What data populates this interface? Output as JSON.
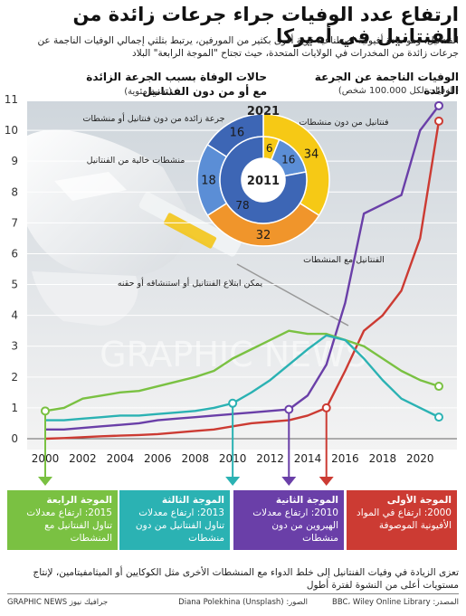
{
  "title": "ارتفاع عدد الوفيات جراء جرعات زائدة من الفنتانيل في أميركا",
  "subtitle": "الفنتانيل، وهو مادة أفيونية اصطناعية قوية أقوى بكثير من المورفين، يرتبط بثلثي إجمالي الوفيات الناجمة عن جرعات زائدة من المخدرات في الولايات المتحدة، حيث تجتاح \"الموجة الرابعة\" البلاد",
  "line_section": {
    "heading": "الوفيات الناجمة عن الجرعة الزائدة",
    "unit": "(الوفيات لكل 100.000 شخص)"
  },
  "donut_section": {
    "heading_line1": "حالات الوفاة بسبب الجرعة الزائدة",
    "heading_line2": "مع أو من دون الفنتانيل",
    "unit": "(نسبة مئوية)"
  },
  "donut_labels": {
    "stimulants_without_fentanyl": "فنتانيل من دون منشطات",
    "overdose_no_stimulants": "جرعة زائدة من دون فنتانيل أو منشطات",
    "stimulants_no_fentanyl": "منشطات خالية من الفنتانيل",
    "fentanyl_with_stimulants": "الفنتانيل مع المنشطات",
    "ingestion_note": "يمكن ابتلاع الفنتانيل أو استنشاقه أو حقنه"
  },
  "watermark": "GRAPHIC NEWS",
  "chart_data": [
    {
      "type": "line",
      "title": "",
      "x": [
        2000,
        2001,
        2002,
        2003,
        2004,
        2005,
        2006,
        2007,
        2008,
        2009,
        2010,
        2011,
        2012,
        2013,
        2014,
        2015,
        2016,
        2017,
        2018,
        2019,
        2020,
        2021
      ],
      "x_ticks": [
        2000,
        2002,
        2004,
        2006,
        2008,
        2010,
        2012,
        2014,
        2016,
        2018,
        2020
      ],
      "ylim": [
        0,
        11
      ],
      "y_ticks": [
        0,
        1,
        2,
        3,
        4,
        5,
        6,
        7,
        8,
        9,
        10,
        11
      ],
      "grid": true,
      "series": [
        {
          "key": "purple",
          "color": "#6a3fa8",
          "values": [
            0.3,
            0.3,
            0.35,
            0.4,
            0.45,
            0.5,
            0.6,
            0.65,
            0.7,
            0.75,
            0.8,
            0.85,
            0.9,
            0.95,
            1.4,
            2.4,
            4.4,
            7.3,
            7.6,
            7.9,
            10.0,
            10.8
          ]
        },
        {
          "key": "red",
          "color": "#cc3b33",
          "values": [
            0.0,
            0.02,
            0.05,
            0.08,
            0.1,
            0.12,
            0.15,
            0.2,
            0.25,
            0.3,
            0.4,
            0.5,
            0.55,
            0.6,
            0.75,
            1.0,
            2.2,
            3.5,
            4.0,
            4.8,
            6.5,
            10.3
          ]
        },
        {
          "key": "green",
          "color": "#7ac142",
          "values": [
            0.9,
            1.0,
            1.3,
            1.4,
            1.5,
            1.55,
            1.7,
            1.85,
            2.0,
            2.2,
            2.6,
            2.9,
            3.2,
            3.5,
            3.4,
            3.4,
            3.2,
            3.0,
            2.6,
            2.2,
            1.9,
            1.7
          ]
        },
        {
          "key": "teal",
          "color": "#2bb2b3",
          "values": [
            0.6,
            0.6,
            0.65,
            0.7,
            0.75,
            0.75,
            0.8,
            0.85,
            0.9,
            1.0,
            1.15,
            1.5,
            1.9,
            2.4,
            2.9,
            3.35,
            3.2,
            2.6,
            1.9,
            1.3,
            1.0,
            0.7
          ]
        }
      ]
    },
    {
      "type": "pie",
      "title": "2011",
      "slices": [
        {
          "label": "فنتانيل من دون منشطات",
          "value": 6,
          "color": "#f6c915"
        },
        {
          "label": "منشطات خالية من الفنتانيل",
          "value": 16,
          "color": "#5b8ed6"
        },
        {
          "label": "جرعة زائدة من دون فنتانيل أو منشطات",
          "value": 78,
          "color": "#3d66b5"
        }
      ]
    },
    {
      "type": "pie",
      "title": "2021",
      "slices": [
        {
          "label": "فنتانيل من دون منشطات",
          "value": 34,
          "color": "#f6c915"
        },
        {
          "label": "الفنتانيل مع المنشطات",
          "value": 32,
          "color": "#f0952b"
        },
        {
          "label": "منشطات خالية من الفنتانيل",
          "value": 18,
          "color": "#5b8ed6"
        },
        {
          "label": "جرعة زائدة من دون فنتانيل أو منشطات",
          "value": 16,
          "color": "#3d66b5"
        }
      ]
    }
  ],
  "waves": [
    {
      "key": "green",
      "color": "#7ac142",
      "title": "الموجة الرابعة",
      "text": "2015: ارتفاع معدلات تناول الفنتانيل مع المنشطات",
      "year": 2000
    },
    {
      "key": "teal",
      "color": "#2bb2b3",
      "title": "الموجة الثالثة",
      "text": "2013: ارتفاع معدلات تناول الفنتانيل من دون منشطات",
      "year": 2010
    },
    {
      "key": "purple",
      "color": "#6a3fa8",
      "title": "الموجة الثانية",
      "text": "2010: ارتفاع معدلات الهيروين من دون منشطات",
      "year": 2013
    },
    {
      "key": "red",
      "color": "#cc3b33",
      "title": "الموجة الأولى",
      "text": "2000: ارتفاع في المواد الأفيونية الموصوفة",
      "year": 2015
    }
  ],
  "footnote": "تعزى الزيادة في وفيات الفنتانيل إلى خلط الدواء مع المنشطات الأخرى مثل الكوكايين أو الميثامفيتامين، لإنتاج مستويات أعلى من النشوة لفترة أطول",
  "footer": {
    "source_label": "المصدر:",
    "source": "BBC، Wiley Online Library",
    "photo_label": "الصور:",
    "photo": "Diana Polekhina (Unsplash)",
    "brand": "GRAPHIC NEWS جرافيك نيوز"
  }
}
